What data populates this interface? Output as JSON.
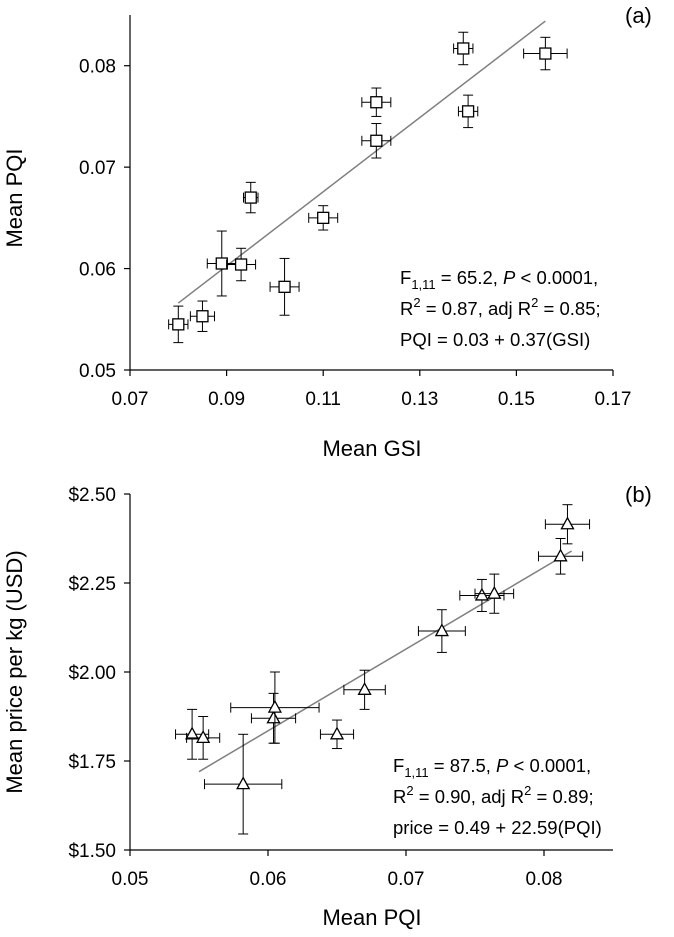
{
  "chart_data": [
    {
      "type": "scatter",
      "panel_label": "(a)",
      "xlabel": "Mean GSI",
      "ylabel": "Mean PQI",
      "xlim": [
        0.07,
        0.17
      ],
      "ylim": [
        0.05,
        0.085
      ],
      "x_ticks": [
        "0.07",
        "0.09",
        "0.11",
        "0.13",
        "0.15",
        "0.17"
      ],
      "x_tick_values": [
        0.07,
        0.09,
        0.11,
        0.13,
        0.15,
        0.17
      ],
      "y_ticks": [
        "0.05",
        "0.06",
        "0.07",
        "0.08"
      ],
      "y_tick_values": [
        0.05,
        0.06,
        0.07,
        0.08
      ],
      "grid": false,
      "marker": "square",
      "points": [
        {
          "x": 0.08,
          "y": 0.0545,
          "xerr": 0.002,
          "yerr": 0.0018
        },
        {
          "x": 0.085,
          "y": 0.0553,
          "xerr": 0.0025,
          "yerr": 0.0015
        },
        {
          "x": 0.089,
          "y": 0.0605,
          "xerr": 0.003,
          "yerr": 0.0032
        },
        {
          "x": 0.093,
          "y": 0.0604,
          "xerr": 0.003,
          "yerr": 0.0016
        },
        {
          "x": 0.095,
          "y": 0.067,
          "xerr": 0.0015,
          "yerr": 0.0015
        },
        {
          "x": 0.102,
          "y": 0.0582,
          "xerr": 0.003,
          "yerr": 0.0028
        },
        {
          "x": 0.11,
          "y": 0.065,
          "xerr": 0.003,
          "yerr": 0.0012
        },
        {
          "x": 0.121,
          "y": 0.0764,
          "xerr": 0.003,
          "yerr": 0.0014
        },
        {
          "x": 0.121,
          "y": 0.0726,
          "xerr": 0.003,
          "yerr": 0.0017
        },
        {
          "x": 0.139,
          "y": 0.0817,
          "xerr": 0.002,
          "yerr": 0.0016
        },
        {
          "x": 0.14,
          "y": 0.0755,
          "xerr": 0.002,
          "yerr": 0.0016
        },
        {
          "x": 0.156,
          "y": 0.0812,
          "xerr": 0.0045,
          "yerr": 0.0016
        }
      ],
      "trendline": {
        "x": [
          0.08,
          0.156
        ],
        "y": [
          0.0566,
          0.0844
        ]
      },
      "annotation": {
        "line1_pre": "F",
        "line1_sub": "1,11",
        "line1_mid": " = 65.2, ",
        "line1_italic": "P",
        "line1_post": " < 0.0001,",
        "line2_pre": "R",
        "line2_sup": "2",
        "line2_post": " = 0.87, adj R",
        "line2_sup2": "2",
        "line2_end": " = 0.85;",
        "line3": "PQI = 0.03 + 0.37(GSI)"
      }
    },
    {
      "type": "scatter",
      "panel_label": "(b)",
      "xlabel": "Mean PQI",
      "ylabel": "Mean price per kg (USD)",
      "xlim": [
        0.05,
        0.085
      ],
      "ylim": [
        1.5,
        2.5
      ],
      "x_ticks": [
        "0.05",
        "0.06",
        "0.07",
        "0.08"
      ],
      "x_tick_values": [
        0.05,
        0.06,
        0.07,
        0.08
      ],
      "y_ticks": [
        "$1.50",
        "$1.75",
        "$2.00",
        "$2.25",
        "$2.50"
      ],
      "y_tick_values": [
        1.5,
        1.75,
        2.0,
        2.25,
        2.5
      ],
      "grid": false,
      "marker": "triangle",
      "points": [
        {
          "x": 0.0545,
          "y": 1.825,
          "xerr": 0.0012,
          "yerr": 0.07
        },
        {
          "x": 0.0553,
          "y": 1.815,
          "xerr": 0.0012,
          "yerr": 0.06
        },
        {
          "x": 0.0582,
          "y": 1.685,
          "xerr": 0.0028,
          "yerr": 0.14
        },
        {
          "x": 0.0604,
          "y": 1.87,
          "xerr": 0.0016,
          "yerr": 0.07
        },
        {
          "x": 0.0605,
          "y": 1.9,
          "xerr": 0.0032,
          "yerr": 0.1
        },
        {
          "x": 0.065,
          "y": 1.825,
          "xerr": 0.0012,
          "yerr": 0.04
        },
        {
          "x": 0.067,
          "y": 1.95,
          "xerr": 0.0015,
          "yerr": 0.055
        },
        {
          "x": 0.0726,
          "y": 2.115,
          "xerr": 0.0017,
          "yerr": 0.06
        },
        {
          "x": 0.0755,
          "y": 2.215,
          "xerr": 0.0016,
          "yerr": 0.045
        },
        {
          "x": 0.0764,
          "y": 2.22,
          "xerr": 0.0014,
          "yerr": 0.055
        },
        {
          "x": 0.0812,
          "y": 2.325,
          "xerr": 0.0016,
          "yerr": 0.05
        },
        {
          "x": 0.0817,
          "y": 2.415,
          "xerr": 0.0016,
          "yerr": 0.055
        }
      ],
      "trendline": {
        "x": [
          0.055,
          0.082
        ],
        "y": [
          1.72,
          2.34
        ]
      },
      "annotation": {
        "line1_pre": "F",
        "line1_sub": "1,11",
        "line1_mid": " = 87.5, ",
        "line1_italic": "P",
        "line1_post": " < 0.0001,",
        "line2_pre": "R",
        "line2_sup": "2",
        "line2_post": " = 0.90, adj R",
        "line2_sup2": "2",
        "line2_end": " = 0.89;",
        "line3": "price = 0.49 + 22.59(PQI)"
      }
    }
  ]
}
